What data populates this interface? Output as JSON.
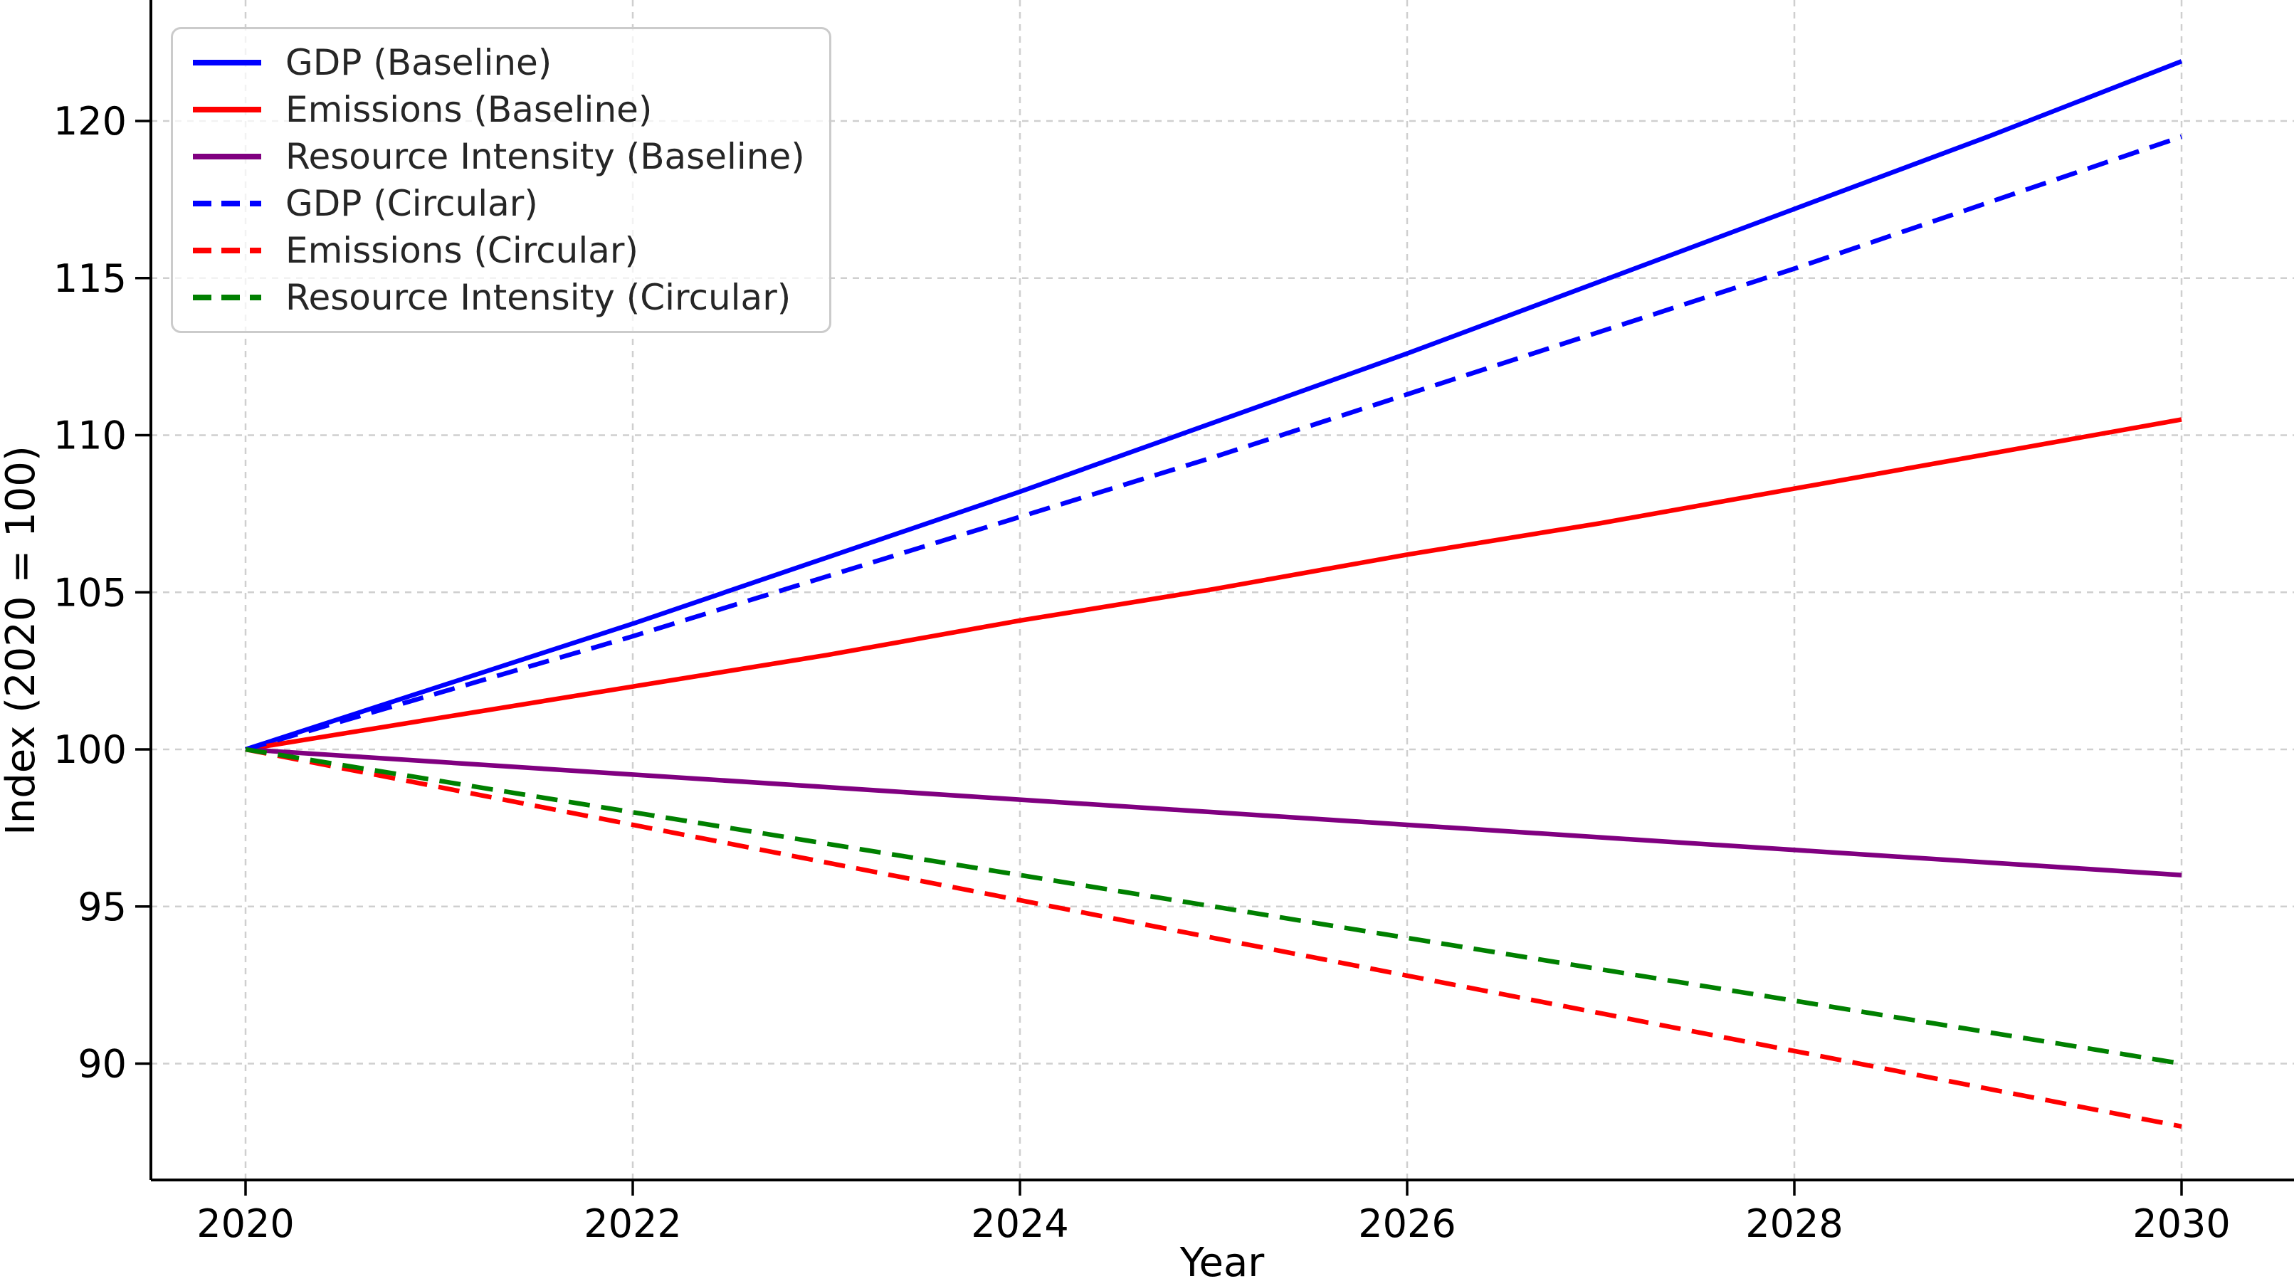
{
  "figure": {
    "background_color": "#ffffff",
    "grid_color": "#cfcfcf",
    "spine_color": "#000000",
    "tick_label_color": "#000000",
    "legend_text_color": "#262626",
    "legend_border_color": "#cbcbcb"
  },
  "chart_data": {
    "type": "line",
    "title": "",
    "xlabel": "Year",
    "ylabel": "Index (2020 = 100)",
    "x": [
      2020,
      2021,
      2022,
      2023,
      2024,
      2025,
      2026,
      2027,
      2028,
      2029,
      2030
    ],
    "xticks": [
      2020,
      2022,
      2024,
      2026,
      2028,
      2030
    ],
    "yticks": [
      90,
      95,
      100,
      105,
      110,
      115,
      120
    ],
    "xlim": [
      2019.47,
      2030.58
    ],
    "ylim": [
      86.3,
      123.85
    ],
    "grid": true,
    "grid_style": "dashed",
    "legend_position": "upper-left",
    "series": [
      {
        "name": "gdp-baseline",
        "label": "GDP (Baseline)",
        "color": "#0000ff",
        "style": "solid",
        "values": [
          100.0,
          102.0,
          104.0,
          106.1,
          108.2,
          110.4,
          112.6,
          114.9,
          117.2,
          119.5,
          121.9
        ]
      },
      {
        "name": "emissions-baseline",
        "label": "Emissions (Baseline)",
        "color": "#ff0000",
        "style": "solid",
        "values": [
          100.0,
          101.0,
          102.0,
          103.0,
          104.1,
          105.1,
          106.2,
          107.2,
          108.3,
          109.4,
          110.5
        ]
      },
      {
        "name": "resource-intensity-baseline",
        "label": "Resource Intensity (Baseline)",
        "color": "#800080",
        "style": "solid",
        "values": [
          100.0,
          99.6,
          99.2,
          98.8,
          98.4,
          98.0,
          97.6,
          97.2,
          96.8,
          96.4,
          96.0
        ]
      },
      {
        "name": "gdp-circular",
        "label": "GDP (Circular)",
        "color": "#0000ff",
        "style": "dashed",
        "values": [
          100.0,
          101.8,
          103.6,
          105.5,
          107.4,
          109.3,
          111.3,
          113.3,
          115.3,
          117.4,
          119.5
        ]
      },
      {
        "name": "emissions-circular",
        "label": "Emissions (Circular)",
        "color": "#ff0000",
        "style": "dashed",
        "values": [
          100.0,
          98.8,
          97.6,
          96.4,
          95.2,
          94.0,
          92.8,
          91.6,
          90.4,
          89.2,
          88.0
        ]
      },
      {
        "name": "resource-intensity-circular",
        "label": "Resource Intensity (Circular)",
        "color": "#008000",
        "style": "dashed",
        "values": [
          100.0,
          99.0,
          98.0,
          97.0,
          96.0,
          95.0,
          94.0,
          93.0,
          92.0,
          91.0,
          90.0
        ]
      }
    ]
  }
}
